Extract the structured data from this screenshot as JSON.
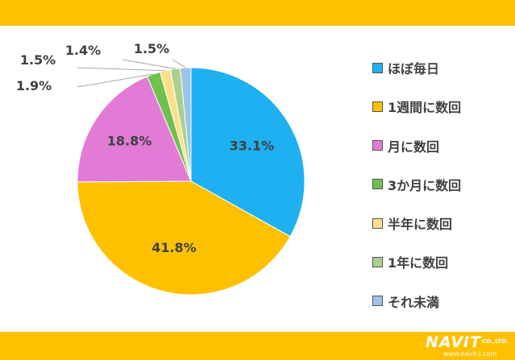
{
  "colors": {
    "band": "#FFC000",
    "label_text": "#404040",
    "leader_line": "#A6A6A6",
    "slice_edge": "#ffffff"
  },
  "chart_data": {
    "type": "pie",
    "title": "",
    "slices": [
      {
        "label": "ほぼ毎日",
        "value": 33.1,
        "display": "33.1%",
        "color": "#1FB0F2"
      },
      {
        "label": "1週間に数回",
        "value": 41.8,
        "display": "41.8%",
        "color": "#FFC000"
      },
      {
        "label": "月に数回",
        "value": 18.8,
        "display": "18.8%",
        "color": "#E27BD6"
      },
      {
        "label": "3か月に数回",
        "value": 1.9,
        "display": "1.9%",
        "color": "#70C04F"
      },
      {
        "label": "半年に数回",
        "value": 1.5,
        "display": "1.5%",
        "color": "#FFE08A"
      },
      {
        "label": "1年に数回",
        "value": 1.4,
        "display": "1.4%",
        "color": "#A9D18E"
      },
      {
        "label": "それ未満",
        "value": 1.5,
        "display": "1.5%",
        "color": "#9DC3E6"
      }
    ],
    "legend_position": "right"
  },
  "logo": {
    "word": "NAVIT",
    "company": "CO.,LTD.",
    "url": "www.navit-j.com"
  }
}
